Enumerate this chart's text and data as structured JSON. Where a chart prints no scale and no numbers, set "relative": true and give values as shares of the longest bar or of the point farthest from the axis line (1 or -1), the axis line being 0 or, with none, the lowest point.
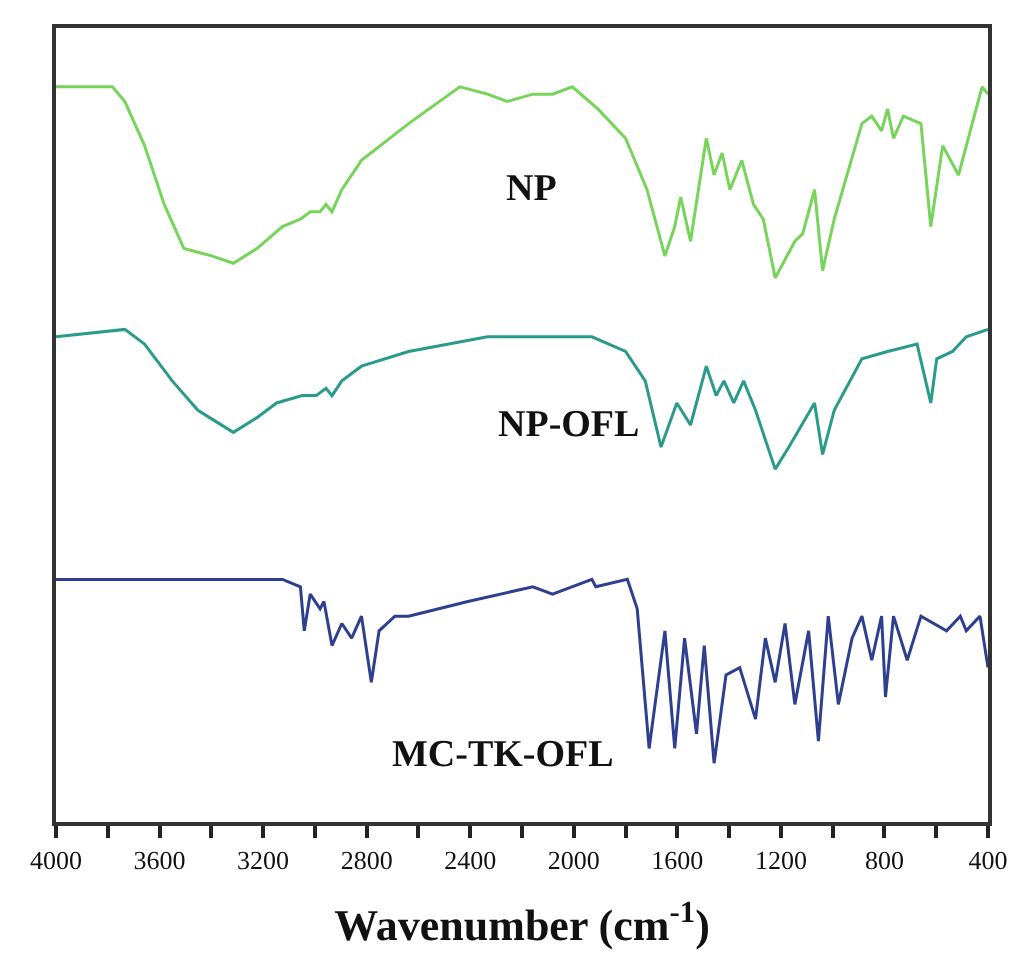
{
  "chart_data": {
    "type": "line",
    "relative": true,
    "xlabel": "Wavenumber (cm$^{-1}$)",
    "tick_labels": "x",
    "legend": false,
    "marker": "none",
    "line_style": "solid",
    "xlim": [
      4000,
      400
    ],
    "xticks": [
      4000,
      {
        "value": 3800,
        "label": null
      },
      3600,
      {
        "value": 3400,
        "label": null
      },
      3200,
      {
        "value": 3000,
        "label": null
      },
      2800,
      {
        "value": 2600,
        "label": null
      },
      2400,
      {
        "value": 2200,
        "label": null
      },
      2000,
      {
        "value": 1800,
        "label": null
      },
      1600,
      {
        "value": 1400,
        "label": null
      },
      1200,
      {
        "value": 1000,
        "label": null
      },
      800,
      {
        "value": 600,
        "label": null
      },
      400
    ],
    "series": [
      {
        "name": "NP",
        "color": "#77d45a",
        "x": [
          4000,
          3782,
          3734,
          3658,
          3582,
          3506,
          3399,
          3315,
          3224,
          3125,
          3056,
          3018,
          2980,
          2957,
          2934,
          2896,
          2820,
          2638,
          2440,
          2333,
          2257,
          2158,
          2082,
          2006,
          1907,
          1800,
          1717,
          1648,
          1610,
          1587,
          1549,
          1488,
          1458,
          1427,
          1397,
          1351,
          1306,
          1268,
          1222,
          1146,
          1116,
          1070,
          1039,
          994,
          887,
          849,
          811,
          788,
          765,
          727,
          659,
          621,
          575,
          514,
          423,
          400
        ],
        "values": [
          1.0,
          1.0,
          0.98,
          0.92,
          0.84,
          0.78,
          0.77,
          0.76,
          0.78,
          0.81,
          0.82,
          0.83,
          0.83,
          0.84,
          0.83,
          0.86,
          0.9,
          0.95,
          1.0,
          0.99,
          0.98,
          0.99,
          0.99,
          1.0,
          0.97,
          0.93,
          0.86,
          0.77,
          0.81,
          0.85,
          0.79,
          0.93,
          0.88,
          0.91,
          0.86,
          0.9,
          0.84,
          0.82,
          0.74,
          0.79,
          0.8,
          0.86,
          0.75,
          0.82,
          0.95,
          0.96,
          0.94,
          0.97,
          0.93,
          0.96,
          0.95,
          0.81,
          0.92,
          0.88,
          1.0,
          0.99
        ]
      },
      {
        "name": "NP-OFL",
        "color": "#2a9a8a",
        "x": [
          4000,
          3734,
          3658,
          3551,
          3452,
          3315,
          3224,
          3148,
          3049,
          2995,
          2957,
          2934,
          2896,
          2820,
          2638,
          2333,
          1930,
          1800,
          1724,
          1663,
          1602,
          1549,
          1488,
          1450,
          1420,
          1382,
          1344,
          1298,
          1222,
          1169,
          1070,
          1039,
          994,
          887,
          788,
          674,
          621,
          598,
          537,
          484,
          400
        ],
        "values": [
          0.66,
          0.67,
          0.65,
          0.6,
          0.56,
          0.53,
          0.55,
          0.57,
          0.58,
          0.58,
          0.59,
          0.58,
          0.6,
          0.62,
          0.64,
          0.66,
          0.66,
          0.64,
          0.6,
          0.51,
          0.57,
          0.54,
          0.62,
          0.58,
          0.6,
          0.57,
          0.6,
          0.56,
          0.48,
          0.51,
          0.57,
          0.5,
          0.56,
          0.63,
          0.64,
          0.65,
          0.57,
          0.63,
          0.64,
          0.66,
          0.67
        ]
      },
      {
        "name": "MC-TK-OFL",
        "color": "#2e3f8f",
        "x": [
          4000,
          3680,
          3399,
          3125,
          3056,
          3041,
          3018,
          2980,
          2965,
          2934,
          2896,
          2858,
          2820,
          2782,
          2752,
          2691,
          2638,
          2409,
          2158,
          2082,
          1930,
          1915,
          1793,
          1755,
          1709,
          1648,
          1610,
          1572,
          1526,
          1496,
          1458,
          1412,
          1359,
          1298,
          1260,
          1222,
          1184,
          1146,
          1093,
          1055,
          1017,
          978,
          925,
          887,
          849,
          811,
          796,
          765,
          712,
          659,
          560,
          507,
          484,
          431,
          400
        ],
        "values": [
          0.33,
          0.33,
          0.33,
          0.33,
          0.32,
          0.26,
          0.31,
          0.29,
          0.3,
          0.24,
          0.27,
          0.25,
          0.28,
          0.19,
          0.26,
          0.28,
          0.28,
          0.3,
          0.32,
          0.31,
          0.33,
          0.32,
          0.33,
          0.29,
          0.1,
          0.26,
          0.1,
          0.25,
          0.12,
          0.24,
          0.08,
          0.2,
          0.21,
          0.14,
          0.25,
          0.19,
          0.27,
          0.16,
          0.26,
          0.11,
          0.28,
          0.16,
          0.25,
          0.28,
          0.22,
          0.28,
          0.17,
          0.28,
          0.22,
          0.28,
          0.26,
          0.28,
          0.26,
          0.28,
          0.21
        ]
      }
    ]
  }
}
